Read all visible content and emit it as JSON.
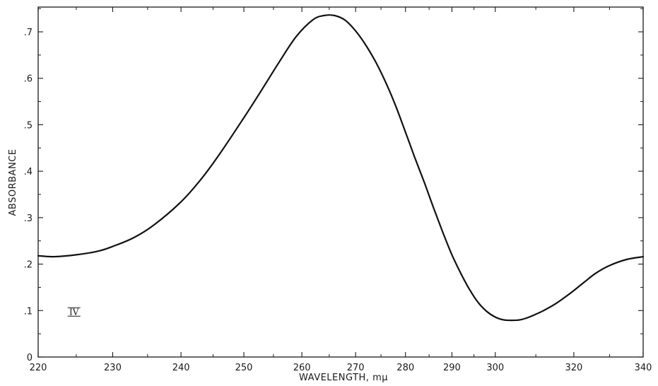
{
  "chart_data": {
    "type": "line",
    "title": "",
    "xlabel": "WAVELENGTH, mμ",
    "ylabel": "ABSORBANCE",
    "annotation": "IV",
    "annotation_point": [
      224.7,
      0.097
    ],
    "xlim": [
      220,
      340
    ],
    "ylim": [
      0,
      0.75
    ],
    "grid": false,
    "x_scale_note": "reciprocal wavelength axis (wavenumber-linear)",
    "x_tick_labels": [
      {
        "value": 220,
        "label": "220"
      },
      {
        "value": 230,
        "label": "230"
      },
      {
        "value": 240,
        "label": "240"
      },
      {
        "value": 250,
        "label": "250"
      },
      {
        "value": 260,
        "label": "260"
      },
      {
        "value": 270,
        "label": "270"
      },
      {
        "value": 280,
        "label": "280"
      },
      {
        "value": 290,
        "label": "290"
      },
      {
        "value": 300,
        "label": "300"
      },
      {
        "value": 320,
        "label": "320"
      },
      {
        "value": 340,
        "label": "340"
      }
    ],
    "x_minor_ticks": [
      225,
      235,
      245,
      255,
      265,
      275,
      285,
      295,
      310,
      330
    ],
    "y_tick_labels": [
      {
        "value": 0,
        "label": "0"
      },
      {
        "value": 0.1,
        "label": ".1"
      },
      {
        "value": 0.2,
        "label": ".2"
      },
      {
        "value": 0.3,
        "label": ".3"
      },
      {
        "value": 0.4,
        "label": ".4"
      },
      {
        "value": 0.5,
        "label": ".5"
      },
      {
        "value": 0.6,
        "label": ".6"
      },
      {
        "value": 0.7,
        "label": ".7"
      }
    ],
    "series": [
      {
        "color": "#111111",
        "x": [
          220,
          222,
          225,
          228,
          230,
          233,
          236,
          240,
          243,
          246,
          250,
          253,
          256,
          259,
          262,
          264,
          266,
          268,
          270,
          272,
          274,
          276,
          278,
          280,
          282,
          284,
          286,
          288,
          290,
          292,
          294,
          296,
          298,
          300,
          302,
          304,
          306,
          308,
          310,
          312,
          315,
          318,
          320,
          323,
          326,
          330,
          335,
          340
        ],
        "y": [
          0.218,
          0.216,
          0.22,
          0.228,
          0.238,
          0.257,
          0.285,
          0.334,
          0.381,
          0.436,
          0.515,
          0.575,
          0.635,
          0.69,
          0.726,
          0.735,
          0.735,
          0.725,
          0.702,
          0.671,
          0.634,
          0.59,
          0.54,
          0.484,
          0.428,
          0.375,
          0.32,
          0.268,
          0.22,
          0.18,
          0.145,
          0.117,
          0.098,
          0.086,
          0.08,
          0.079,
          0.08,
          0.085,
          0.092,
          0.1,
          0.114,
          0.131,
          0.143,
          0.162,
          0.18,
          0.197,
          0.21,
          0.216
        ]
      }
    ]
  }
}
